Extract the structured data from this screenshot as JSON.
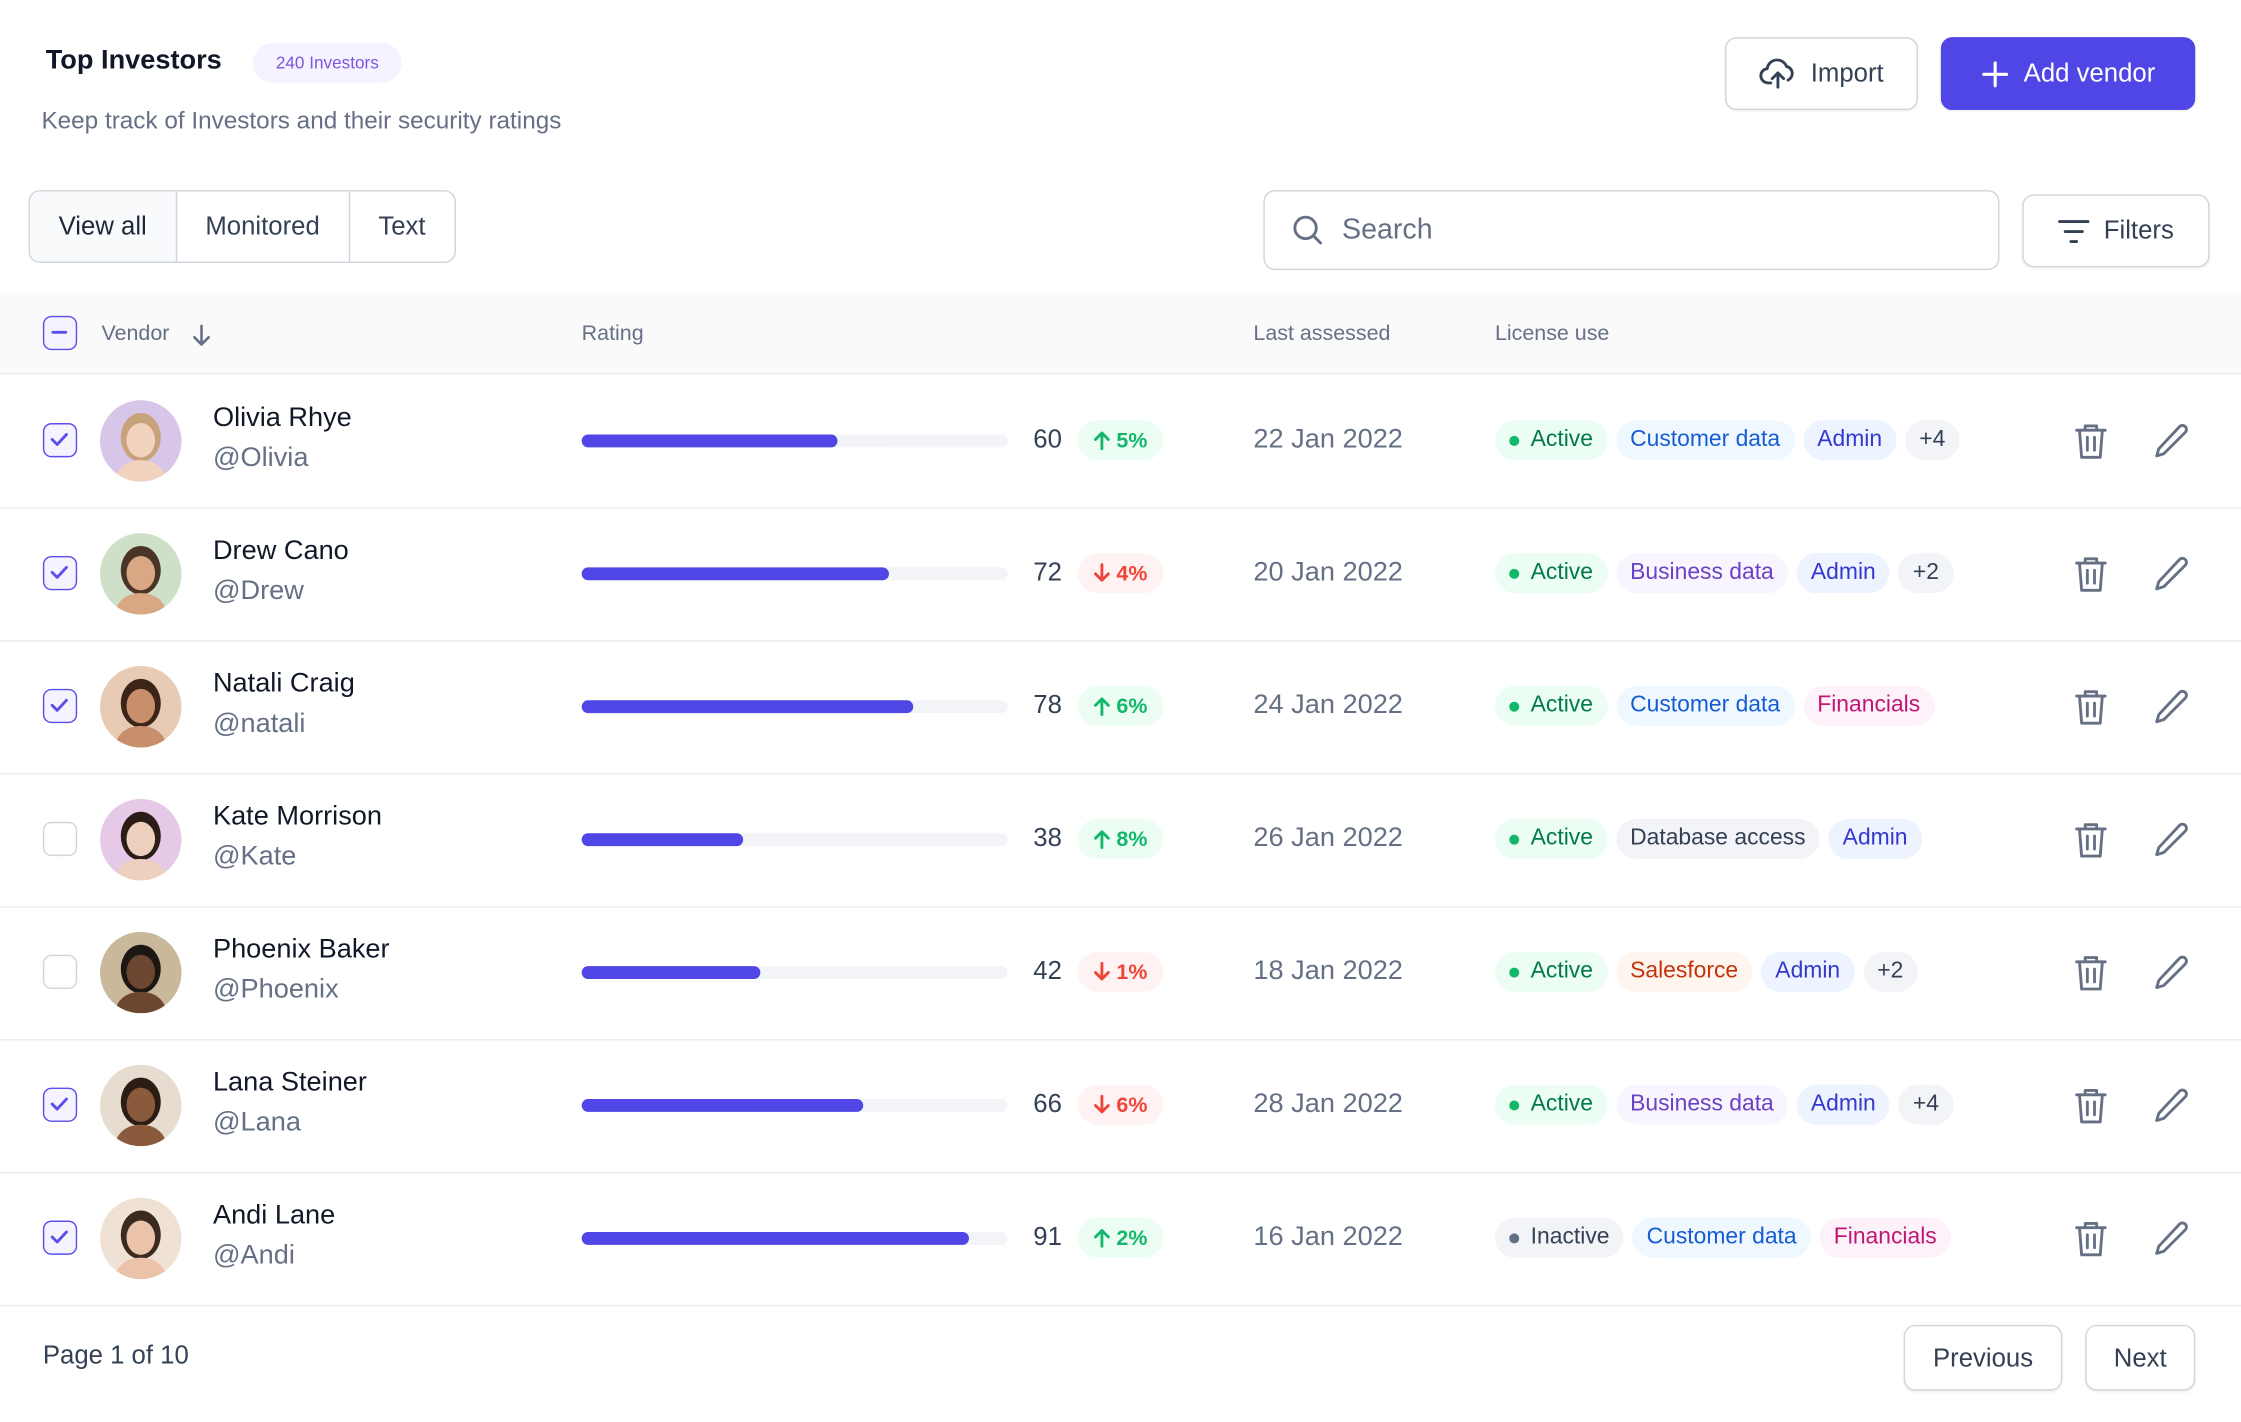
{
  "header": {
    "title": "Top Investors",
    "badge": "240 Investors",
    "subtitle": "Keep track of Investors and their security ratings"
  },
  "actions": {
    "import": "Import",
    "add": "Add vendor"
  },
  "tabs": [
    "View all",
    "Monitored",
    "Text"
  ],
  "search_placeholder": "Search",
  "filters": "Filters",
  "table": {
    "columns": [
      "Vendor",
      "Rating",
      "Last assessed",
      "License use"
    ],
    "rows": [
      {
        "name": "Olivia Rhye",
        "handle": "@Olivia",
        "checked": true,
        "rating": 60,
        "change": "5%",
        "trend": "up",
        "date": "22 Jan 2022",
        "tags": [
          {
            "text": "Active",
            "tone": "active"
          },
          {
            "text": "Customer data",
            "tone": "blue"
          },
          {
            "text": "Admin",
            "tone": "indigo"
          },
          {
            "text": "+4",
            "tone": "gray"
          }
        ]
      },
      {
        "name": "Drew Cano",
        "handle": "@Drew",
        "checked": true,
        "rating": 72,
        "change": "4%",
        "trend": "down",
        "date": "20 Jan 2022",
        "tags": [
          {
            "text": "Active",
            "tone": "active"
          },
          {
            "text": "Business data",
            "tone": "purple"
          },
          {
            "text": "Admin",
            "tone": "indigo"
          },
          {
            "text": "+2",
            "tone": "gray"
          }
        ]
      },
      {
        "name": "Natali Craig",
        "handle": "@natali",
        "checked": true,
        "rating": 78,
        "change": "6%",
        "trend": "up",
        "date": "24 Jan 2022",
        "tags": [
          {
            "text": "Active",
            "tone": "active"
          },
          {
            "text": "Customer data",
            "tone": "blue"
          },
          {
            "text": "Financials",
            "tone": "pink"
          }
        ]
      },
      {
        "name": "Kate Morrison",
        "handle": "@Kate",
        "checked": false,
        "rating": 38,
        "change": "8%",
        "trend": "up",
        "date": "26 Jan 2022",
        "tags": [
          {
            "text": "Active",
            "tone": "active"
          },
          {
            "text": "Database access",
            "tone": "gray"
          },
          {
            "text": "Admin",
            "tone": "indigo"
          }
        ]
      },
      {
        "name": "Phoenix Baker",
        "handle": "@Phoenix",
        "checked": false,
        "rating": 42,
        "change": "1%",
        "trend": "down",
        "date": "18 Jan 2022",
        "tags": [
          {
            "text": "Active",
            "tone": "active"
          },
          {
            "text": "Salesforce",
            "tone": "orange"
          },
          {
            "text": "Admin",
            "tone": "indigo"
          },
          {
            "text": "+2",
            "tone": "gray"
          }
        ]
      },
      {
        "name": "Lana Steiner",
        "handle": "@Lana",
        "checked": true,
        "rating": 66,
        "change": "6%",
        "trend": "down",
        "date": "28 Jan 2022",
        "tags": [
          {
            "text": "Active",
            "tone": "active"
          },
          {
            "text": "Business data",
            "tone": "purple"
          },
          {
            "text": "Admin",
            "tone": "indigo"
          },
          {
            "text": "+4",
            "tone": "gray"
          }
        ]
      },
      {
        "name": "Andi Lane",
        "handle": "@Andi",
        "checked": true,
        "rating": 91,
        "change": "2%",
        "trend": "up",
        "date": "16 Jan 2022",
        "tags": [
          {
            "text": "Inactive",
            "tone": "inactive"
          },
          {
            "text": "Customer data",
            "tone": "blue"
          },
          {
            "text": "Financials",
            "tone": "pink"
          }
        ]
      }
    ]
  },
  "footer": {
    "page": "Page 1 of 10",
    "previous": "Previous",
    "next": "Next"
  }
}
